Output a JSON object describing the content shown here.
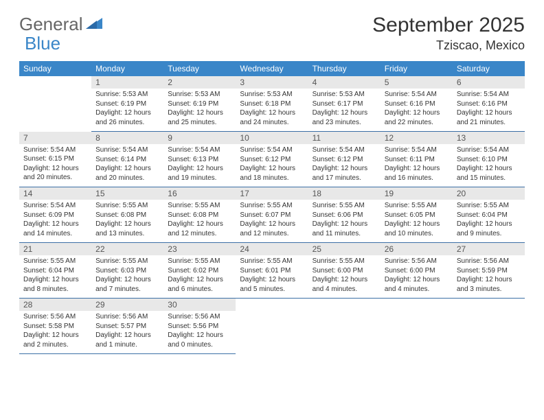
{
  "brand": {
    "part1": "General",
    "part2": "Blue"
  },
  "title": "September 2025",
  "location": "Tziscao, Mexico",
  "colors": {
    "header_bg": "#3a86c8",
    "header_text": "#ffffff",
    "daynum_bg": "#e8e8e8",
    "border": "#3a6ea5",
    "brand_gray": "#666666",
    "brand_blue": "#3a86c8"
  },
  "weekdays": [
    "Sunday",
    "Monday",
    "Tuesday",
    "Wednesday",
    "Thursday",
    "Friday",
    "Saturday"
  ],
  "weeks": [
    [
      null,
      {
        "num": "1",
        "sunrise": "Sunrise: 5:53 AM",
        "sunset": "Sunset: 6:19 PM",
        "day1": "Daylight: 12 hours",
        "day2": "and 26 minutes."
      },
      {
        "num": "2",
        "sunrise": "Sunrise: 5:53 AM",
        "sunset": "Sunset: 6:19 PM",
        "day1": "Daylight: 12 hours",
        "day2": "and 25 minutes."
      },
      {
        "num": "3",
        "sunrise": "Sunrise: 5:53 AM",
        "sunset": "Sunset: 6:18 PM",
        "day1": "Daylight: 12 hours",
        "day2": "and 24 minutes."
      },
      {
        "num": "4",
        "sunrise": "Sunrise: 5:53 AM",
        "sunset": "Sunset: 6:17 PM",
        "day1": "Daylight: 12 hours",
        "day2": "and 23 minutes."
      },
      {
        "num": "5",
        "sunrise": "Sunrise: 5:54 AM",
        "sunset": "Sunset: 6:16 PM",
        "day1": "Daylight: 12 hours",
        "day2": "and 22 minutes."
      },
      {
        "num": "6",
        "sunrise": "Sunrise: 5:54 AM",
        "sunset": "Sunset: 6:16 PM",
        "day1": "Daylight: 12 hours",
        "day2": "and 21 minutes."
      }
    ],
    [
      {
        "num": "7",
        "sunrise": "Sunrise: 5:54 AM",
        "sunset": "Sunset: 6:15 PM",
        "day1": "Daylight: 12 hours",
        "day2": "and 20 minutes."
      },
      {
        "num": "8",
        "sunrise": "Sunrise: 5:54 AM",
        "sunset": "Sunset: 6:14 PM",
        "day1": "Daylight: 12 hours",
        "day2": "and 20 minutes."
      },
      {
        "num": "9",
        "sunrise": "Sunrise: 5:54 AM",
        "sunset": "Sunset: 6:13 PM",
        "day1": "Daylight: 12 hours",
        "day2": "and 19 minutes."
      },
      {
        "num": "10",
        "sunrise": "Sunrise: 5:54 AM",
        "sunset": "Sunset: 6:12 PM",
        "day1": "Daylight: 12 hours",
        "day2": "and 18 minutes."
      },
      {
        "num": "11",
        "sunrise": "Sunrise: 5:54 AM",
        "sunset": "Sunset: 6:12 PM",
        "day1": "Daylight: 12 hours",
        "day2": "and 17 minutes."
      },
      {
        "num": "12",
        "sunrise": "Sunrise: 5:54 AM",
        "sunset": "Sunset: 6:11 PM",
        "day1": "Daylight: 12 hours",
        "day2": "and 16 minutes."
      },
      {
        "num": "13",
        "sunrise": "Sunrise: 5:54 AM",
        "sunset": "Sunset: 6:10 PM",
        "day1": "Daylight: 12 hours",
        "day2": "and 15 minutes."
      }
    ],
    [
      {
        "num": "14",
        "sunrise": "Sunrise: 5:54 AM",
        "sunset": "Sunset: 6:09 PM",
        "day1": "Daylight: 12 hours",
        "day2": "and 14 minutes."
      },
      {
        "num": "15",
        "sunrise": "Sunrise: 5:55 AM",
        "sunset": "Sunset: 6:08 PM",
        "day1": "Daylight: 12 hours",
        "day2": "and 13 minutes."
      },
      {
        "num": "16",
        "sunrise": "Sunrise: 5:55 AM",
        "sunset": "Sunset: 6:08 PM",
        "day1": "Daylight: 12 hours",
        "day2": "and 12 minutes."
      },
      {
        "num": "17",
        "sunrise": "Sunrise: 5:55 AM",
        "sunset": "Sunset: 6:07 PM",
        "day1": "Daylight: 12 hours",
        "day2": "and 12 minutes."
      },
      {
        "num": "18",
        "sunrise": "Sunrise: 5:55 AM",
        "sunset": "Sunset: 6:06 PM",
        "day1": "Daylight: 12 hours",
        "day2": "and 11 minutes."
      },
      {
        "num": "19",
        "sunrise": "Sunrise: 5:55 AM",
        "sunset": "Sunset: 6:05 PM",
        "day1": "Daylight: 12 hours",
        "day2": "and 10 minutes."
      },
      {
        "num": "20",
        "sunrise": "Sunrise: 5:55 AM",
        "sunset": "Sunset: 6:04 PM",
        "day1": "Daylight: 12 hours",
        "day2": "and 9 minutes."
      }
    ],
    [
      {
        "num": "21",
        "sunrise": "Sunrise: 5:55 AM",
        "sunset": "Sunset: 6:04 PM",
        "day1": "Daylight: 12 hours",
        "day2": "and 8 minutes."
      },
      {
        "num": "22",
        "sunrise": "Sunrise: 5:55 AM",
        "sunset": "Sunset: 6:03 PM",
        "day1": "Daylight: 12 hours",
        "day2": "and 7 minutes."
      },
      {
        "num": "23",
        "sunrise": "Sunrise: 5:55 AM",
        "sunset": "Sunset: 6:02 PM",
        "day1": "Daylight: 12 hours",
        "day2": "and 6 minutes."
      },
      {
        "num": "24",
        "sunrise": "Sunrise: 5:55 AM",
        "sunset": "Sunset: 6:01 PM",
        "day1": "Daylight: 12 hours",
        "day2": "and 5 minutes."
      },
      {
        "num": "25",
        "sunrise": "Sunrise: 5:55 AM",
        "sunset": "Sunset: 6:00 PM",
        "day1": "Daylight: 12 hours",
        "day2": "and 4 minutes."
      },
      {
        "num": "26",
        "sunrise": "Sunrise: 5:56 AM",
        "sunset": "Sunset: 6:00 PM",
        "day1": "Daylight: 12 hours",
        "day2": "and 4 minutes."
      },
      {
        "num": "27",
        "sunrise": "Sunrise: 5:56 AM",
        "sunset": "Sunset: 5:59 PM",
        "day1": "Daylight: 12 hours",
        "day2": "and 3 minutes."
      }
    ],
    [
      {
        "num": "28",
        "sunrise": "Sunrise: 5:56 AM",
        "sunset": "Sunset: 5:58 PM",
        "day1": "Daylight: 12 hours",
        "day2": "and 2 minutes."
      },
      {
        "num": "29",
        "sunrise": "Sunrise: 5:56 AM",
        "sunset": "Sunset: 5:57 PM",
        "day1": "Daylight: 12 hours",
        "day2": "and 1 minute."
      },
      {
        "num": "30",
        "sunrise": "Sunrise: 5:56 AM",
        "sunset": "Sunset: 5:56 PM",
        "day1": "Daylight: 12 hours",
        "day2": "and 0 minutes."
      },
      null,
      null,
      null,
      null
    ]
  ]
}
